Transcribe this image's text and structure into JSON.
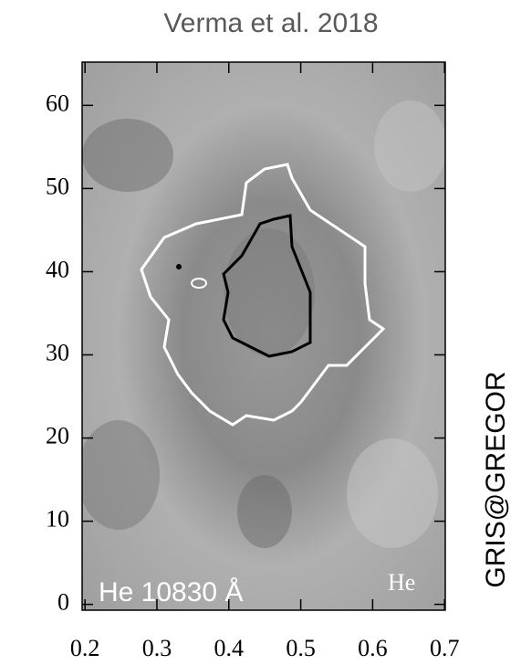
{
  "chart_data": {
    "type": "image",
    "title": "Verma et al. 2018",
    "annotations": [
      "He 10830 Å",
      "He",
      "GRIS@GREGOR"
    ],
    "xlim": [
      0.196,
      0.701
    ],
    "ylim": [
      -0.7,
      65.2
    ],
    "xticks": [
      0.2,
      0.3,
      0.4,
      0.5,
      0.6,
      0.7
    ],
    "yticks": [
      0,
      10,
      20,
      30,
      40,
      50,
      60
    ]
  }
}
